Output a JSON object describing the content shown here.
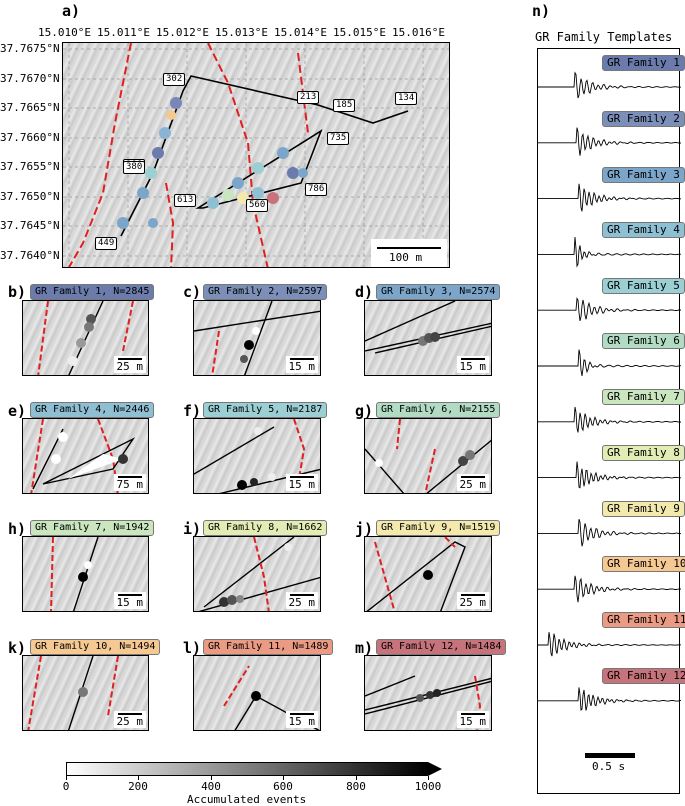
{
  "panel_a": {
    "label": "a)",
    "x_ticks": [
      "15.010°E",
      "15.011°E",
      "15.012°E",
      "15.013°E",
      "15.014°E",
      "15.015°E",
      "15.016°E"
    ],
    "y_ticks": [
      "37.7675°N",
      "37.7670°N",
      "37.7665°N",
      "37.7660°N",
      "37.7655°N",
      "37.7650°N",
      "37.7645°N",
      "37.7640°N"
    ],
    "node_labels": [
      "302",
      "213",
      "185",
      "134",
      "735",
      "388",
      "380",
      "786",
      "613",
      "560",
      "449"
    ],
    "scale": "100 m"
  },
  "families": [
    {
      "label": "b)",
      "title": "GR Family 1, N=2845",
      "scale": "25 m",
      "color": "#6b7bab"
    },
    {
      "label": "c)",
      "title": "GR Family 2, N=2597",
      "scale": "15 m",
      "color": "#7c8fb9"
    },
    {
      "label": "d)",
      "title": "GR Family 3, N=2574",
      "scale": "15 m",
      "color": "#7ba6c9"
    },
    {
      "label": "e)",
      "title": "GR Family 4, N=2446",
      "scale": "75 m",
      "color": "#8fbfd3"
    },
    {
      "label": "f)",
      "title": "GR Family 5, N=2187",
      "scale": "15 m",
      "color": "#9ccfd3"
    },
    {
      "label": "g)",
      "title": "GR Family 6, N=2155",
      "scale": "25 m",
      "color": "#b2dbc4"
    },
    {
      "label": "h)",
      "title": "GR Family 7, N=1942",
      "scale": "15 m",
      "color": "#c9e6bf"
    },
    {
      "label": "i)",
      "title": "GR Family 8, N=1662",
      "scale": "25 m",
      "color": "#e1edb4"
    },
    {
      "label": "j)",
      "title": "GR Family 9, N=1519",
      "scale": "25 m",
      "color": "#f3e9ad"
    },
    {
      "label": "k)",
      "title": "GR Family 10, N=1494",
      "scale": "25 m",
      "color": "#f6c993"
    },
    {
      "label": "l)",
      "title": "GR Family 11, N=1489",
      "scale": "15 m",
      "color": "#eb9b83"
    },
    {
      "label": "m)",
      "title": "GR Family 12, N=1484",
      "scale": "15 m",
      "color": "#c7737b"
    }
  ],
  "templates": {
    "label": "n)",
    "title": "GR Family Templates",
    "labels": [
      "GR Family 1",
      "GR Family 2",
      "GR Family 3",
      "GR Family 4",
      "GR Family 5",
      "GR Family 6",
      "GR Family 7",
      "GR Family 8",
      "GR Family 9",
      "GR Family 10",
      "GR Family 11",
      "GR Family 12"
    ],
    "scale": "0.5 s"
  },
  "colorbar": {
    "ticks": [
      "0",
      "200",
      "400",
      "600",
      "800",
      "1000"
    ],
    "label": "Accumulated events"
  }
}
